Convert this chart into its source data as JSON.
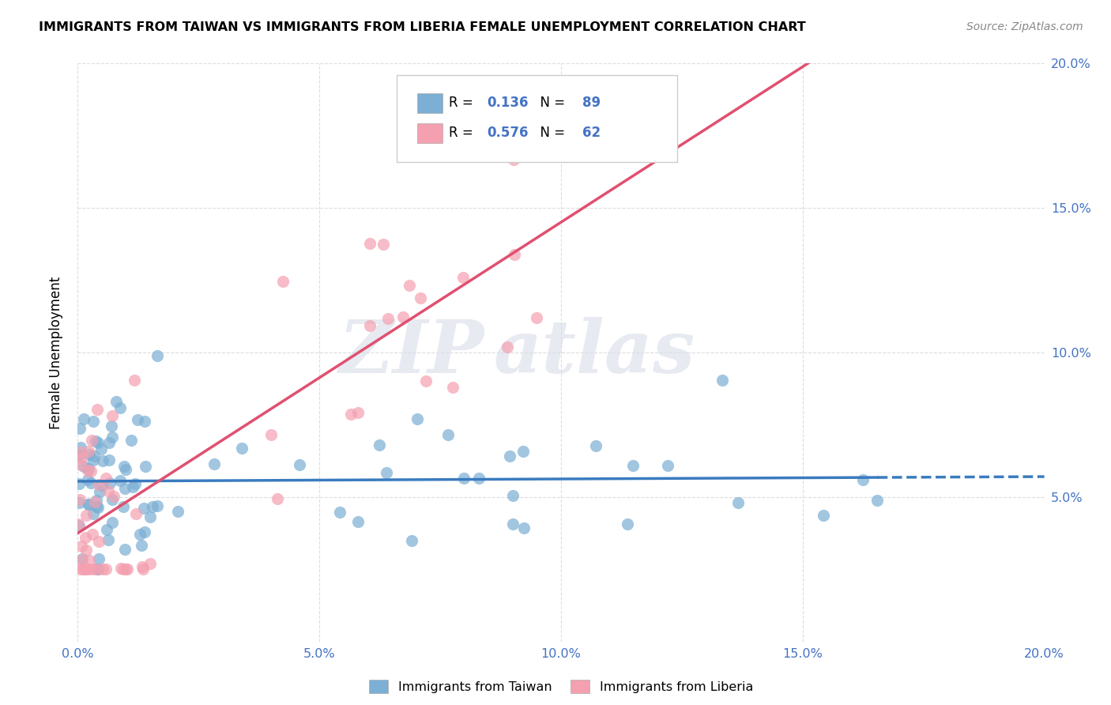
{
  "title": "IMMIGRANTS FROM TAIWAN VS IMMIGRANTS FROM LIBERIA FEMALE UNEMPLOYMENT CORRELATION CHART",
  "source": "Source: ZipAtlas.com",
  "ylabel": "Female Unemployment",
  "xlim": [
    0.0,
    0.2
  ],
  "ylim": [
    0.0,
    0.2
  ],
  "taiwan_R": 0.136,
  "taiwan_N": 89,
  "liberia_R": 0.576,
  "liberia_N": 62,
  "taiwan_color": "#7bafd4",
  "liberia_color": "#f4a0b0",
  "taiwan_line_color": "#3a7bbf",
  "liberia_line_color": "#e05070",
  "legend_label_taiwan": "Immigrants from Taiwan",
  "legend_label_liberia": "Immigrants from Liberia",
  "watermark_zip": "ZIP",
  "watermark_atlas": "atlas",
  "grid_color": "#dddddd",
  "tick_color": "#4472c4",
  "taiwan_slope": 0.065,
  "taiwan_intercept": 0.055,
  "liberia_slope": 1.05,
  "liberia_intercept": 0.038
}
